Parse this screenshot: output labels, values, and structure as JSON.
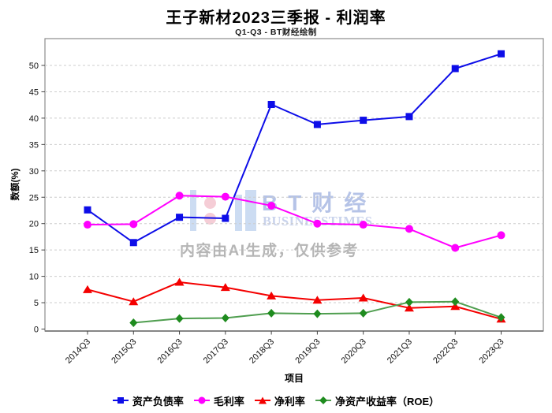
{
  "header": {
    "title": "王子新材2023三季报 - 利润率",
    "subtitle": "Q1-Q3 - BT财经绘制"
  },
  "watermark": {
    "brand": "BT财经",
    "brand_sub": "BUSINESSTIMES",
    "ai_note": "内容由AI生成，仅供参考"
  },
  "chart_data": {
    "type": "line",
    "title": "王子新材2023三季报 - 利润率",
    "subtitle": "Q1-Q3 - BT财经绘制",
    "xlabel": "项目",
    "ylabel": "数额(%)",
    "ylim": [
      0,
      55
    ],
    "yticks": [
      0,
      5,
      10,
      15,
      20,
      25,
      30,
      35,
      40,
      45,
      50
    ],
    "grid": "horizontal-dashed",
    "legend_position": "bottom-center",
    "categories": [
      "2014Q3",
      "2015Q3",
      "2016Q3",
      "2017Q3",
      "2018Q3",
      "2019Q3",
      "2020Q3",
      "2021Q3",
      "2022Q3",
      "2023Q3"
    ],
    "series": [
      {
        "name": "资产负债率",
        "marker": "square",
        "color": "#0d0de8",
        "values": [
          22.6,
          16.4,
          21.2,
          21.0,
          42.6,
          38.8,
          39.6,
          40.3,
          49.4,
          52.2
        ]
      },
      {
        "name": "毛利率",
        "marker": "circle",
        "color": "#ff00ff",
        "values": [
          19.8,
          19.9,
          25.3,
          25.1,
          23.4,
          20.0,
          19.8,
          19.0,
          15.4,
          17.8
        ]
      },
      {
        "name": "净利率",
        "marker": "triangle",
        "color": "#f40000",
        "values": [
          7.5,
          5.2,
          8.9,
          7.9,
          6.3,
          5.5,
          5.9,
          4.0,
          4.3,
          1.9
        ]
      },
      {
        "name": "净资产收益率（ROE）",
        "marker": "diamond",
        "color": "#1f8c1f",
        "line_color": "#4f9e4f",
        "values": [
          null,
          1.2,
          2.0,
          2.1,
          3.0,
          2.9,
          3.0,
          5.1,
          5.2,
          2.2
        ]
      }
    ]
  }
}
